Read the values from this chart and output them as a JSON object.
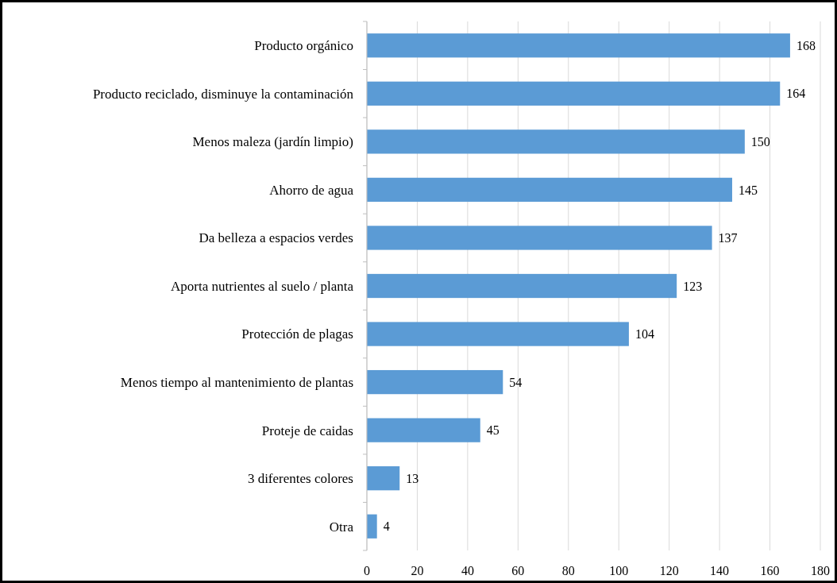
{
  "chart_data": {
    "type": "bar",
    "orientation": "horizontal",
    "categories": [
      "Producto orgánico",
      "Producto reciclado, disminuye la contaminación",
      "Menos maleza (jardín limpio)",
      "Ahorro de agua",
      "Da belleza a espacios verdes",
      "Aporta nutrientes al suelo / planta",
      "Protección de plagas",
      "Menos tiempo al mantenimiento de plantas",
      "Proteje de caidas",
      "3 diferentes colores",
      "Otra"
    ],
    "values": [
      168,
      164,
      150,
      145,
      137,
      123,
      104,
      54,
      45,
      13,
      4
    ],
    "color": "#5b9bd5",
    "xlim": [
      0,
      180
    ],
    "xticks": [
      0,
      20,
      40,
      60,
      80,
      100,
      120,
      140,
      160,
      180
    ],
    "grid": "x",
    "data_labels": true
  }
}
